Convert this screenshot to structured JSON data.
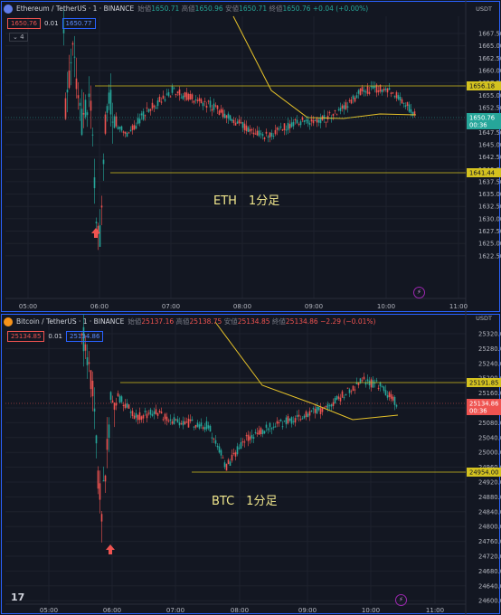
{
  "colors": {
    "background": "#131722",
    "up": "#26a69a",
    "down": "#ef5350",
    "ma": "#e6c229",
    "level": "#d4c21f",
    "grid": "#1e222d",
    "arrow": "#ef5350"
  },
  "time_labels": [
    "05:00",
    "06:00",
    "07:00",
    "08:00",
    "09:00",
    "10:00",
    "11:00"
  ],
  "charts": [
    {
      "id": "eth",
      "title": "Ethereum / TetherUS · 1 · BINANCE",
      "ohlc": {
        "o_label": "始値",
        "o": "1650.71",
        "h_label": "高値",
        "h": "1650.96",
        "l_label": "安値",
        "l": "1650.71",
        "c_label": "終値",
        "c": "1650.76",
        "change": "+0.04 (+0.00%)"
      },
      "sell_price": "1650.76",
      "spread": "0.01",
      "buy_price": "1650.77",
      "indicator_count": "4",
      "currency": "USDT",
      "label": "ETH　1分足",
      "y_ticks": [
        "1667.50",
        "1665.00",
        "1662.50",
        "1660.00",
        "1657.50",
        "1655.00",
        "1652.50",
        "1650.00",
        "1647.50",
        "1645.00",
        "1642.50",
        "1640.00",
        "1637.50",
        "1635.00",
        "1632.50",
        "1630.00",
        "1627.50",
        "1625.00",
        "1622.50"
      ],
      "levels": [
        {
          "value": "1656.18"
        },
        {
          "value": "1641.44"
        }
      ],
      "last_price": "1650.76",
      "countdown": "00:36"
    },
    {
      "id": "btc",
      "title": "Bitcoin / TetherUS · 1 · BINANCE",
      "ohlc": {
        "o_label": "始値",
        "o": "25137.16",
        "h_label": "高値",
        "h": "25138.75",
        "l_label": "安値",
        "l": "25134.85",
        "c_label": "終値",
        "c": "25134.86",
        "change": "−2.29 (−0.01%)"
      },
      "sell_price": "25134.85",
      "spread": "0.01",
      "buy_price": "25134.86",
      "indicator_count": "4",
      "currency": "USDT",
      "label": "BTC　1分足",
      "y_ticks": [
        "25320.00",
        "25280.00",
        "25240.00",
        "25200.00",
        "25160.00",
        "25120.00",
        "25080.00",
        "25040.00",
        "25000.00",
        "24960.00",
        "24920.00",
        "24880.00",
        "24840.00",
        "24800.00",
        "24760.00",
        "24720.00",
        "24680.00",
        "24640.00",
        "24600.00"
      ],
      "levels": [
        {
          "value": "25191.85"
        },
        {
          "value": "24954.00"
        }
      ],
      "last_price": "25134.86",
      "countdown": "00:36"
    }
  ]
}
